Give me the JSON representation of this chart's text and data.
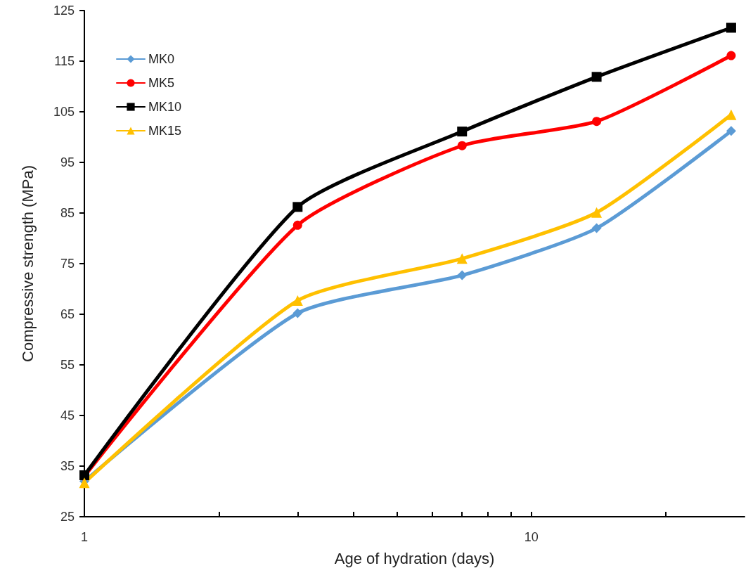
{
  "chart_data": {
    "type": "line",
    "xlabel": "Age of hydration (days)",
    "ylabel": "Compressive strength (MPa)",
    "log": "x",
    "xlim": [
      1,
      30
    ],
    "xticks": [
      1,
      {
        "value": 2,
        "label": null
      },
      {
        "value": 3,
        "label": null
      },
      {
        "value": 4,
        "label": null
      },
      {
        "value": 5,
        "label": null
      },
      {
        "value": 6,
        "label": null
      },
      {
        "value": 7,
        "label": null
      },
      {
        "value": 8,
        "label": null
      },
      {
        "value": 9,
        "label": null
      },
      10,
      {
        "value": 20,
        "label": null
      }
    ],
    "ylim": [
      25,
      125
    ],
    "yticks": [
      25,
      35,
      45,
      55,
      65,
      75,
      85,
      95,
      105,
      115,
      125
    ],
    "grid": false,
    "legend": "top left",
    "line_style": "solid",
    "x": [
      1,
      3,
      7,
      14,
      28
    ],
    "series": [
      {
        "name": "MK0",
        "color": "#5b9bd5",
        "marker": "diamond",
        "values": [
          32,
          65.2,
          72.7,
          82,
          101.2
        ]
      },
      {
        "name": "MK5",
        "color": "#ff0000",
        "marker": "circle",
        "values": [
          33,
          82.6,
          98.3,
          103.1,
          116.1
        ]
      },
      {
        "name": "MK10",
        "color": "#000000",
        "marker": "square",
        "values": [
          33.2,
          86.2,
          101.1,
          111.9,
          121.6
        ]
      },
      {
        "name": "MK15",
        "color": "#ffc000",
        "marker": "triangle",
        "values": [
          31.7,
          67.7,
          76,
          85.1,
          104.4
        ]
      }
    ]
  }
}
